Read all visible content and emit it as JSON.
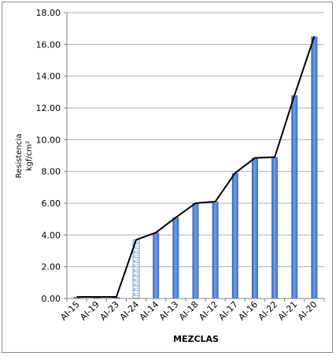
{
  "chart_data": {
    "type": "bar",
    "xlabel": "MEZCLAS",
    "ylabel_line1": "Resistencia",
    "ylabel_line2": "kgf/cm²",
    "ylim": [
      0,
      18
    ],
    "yticks": [
      "0.00",
      "2.00",
      "4.00",
      "6.00",
      "8.00",
      "10.00",
      "12.00",
      "14.00",
      "16.00",
      "18.00"
    ],
    "grid": true,
    "categories": [
      "AI-15",
      "AI-19",
      "AI-23",
      "AI-24",
      "AI-14",
      "AI-13",
      "AI-18",
      "AI-12",
      "AI-17",
      "AI-16",
      "AI-22",
      "AI-21",
      "AI-20"
    ],
    "values": [
      0.1,
      0.1,
      0.1,
      3.7,
      4.15,
      5.1,
      6.0,
      6.1,
      7.9,
      8.85,
      8.9,
      12.8,
      16.5
    ],
    "highlight_category": "AI-24",
    "bar_color": "#4f81d8",
    "line_color": "#000000"
  }
}
